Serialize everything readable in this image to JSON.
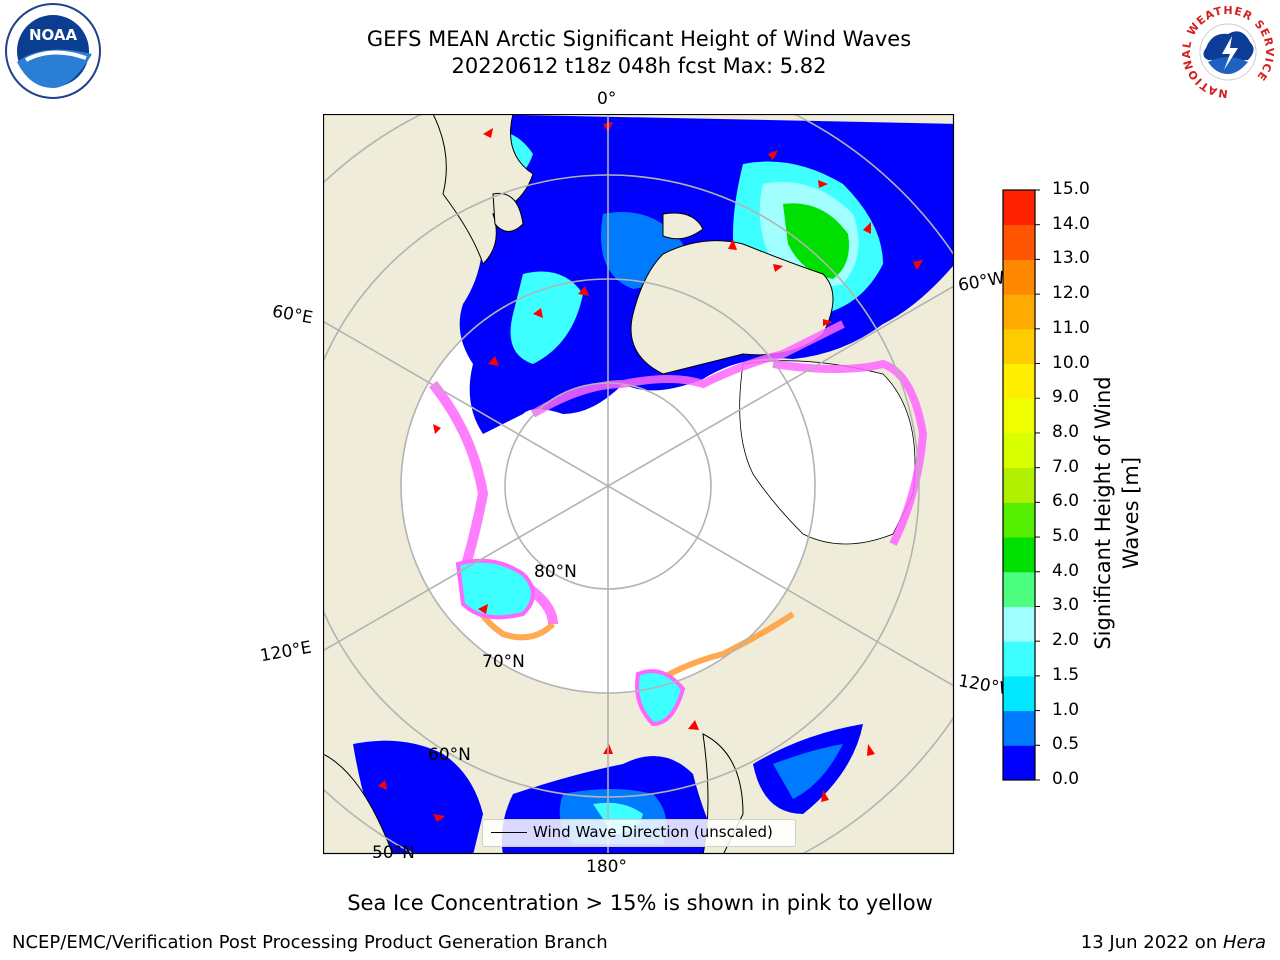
{
  "header": {
    "title_line1": "GEFS MEAN Arctic Significant Height of Wind Waves",
    "title_line2": "20220612 t18z 048h fcst   Max: 5.82"
  },
  "logos": {
    "left": "NOAA",
    "right_ring": "NATIONAL WEATHER SERVICE"
  },
  "map": {
    "lon_labels": [
      "0°",
      "60°E",
      "120°E",
      "180°",
      "120°W",
      "60°W"
    ],
    "lat_labels": [
      "80°N",
      "70°N",
      "60°N",
      "50°N"
    ],
    "legend_text": "Wind Wave Direction (unscaled)",
    "colors": {
      "land": "#efedd9",
      "ice_free_high": "#ffffff",
      "grid": "#b3b3b3",
      "arrow": "#ff0000"
    }
  },
  "colorbar": {
    "title": "Significant Height of Wind Waves [m]",
    "ticks": [
      "0.0",
      "0.5",
      "1.0",
      "1.5",
      "2.0",
      "3.0",
      "4.0",
      "5.0",
      "6.0",
      "7.0",
      "8.0",
      "9.0",
      "10.0",
      "11.0",
      "12.0",
      "13.0",
      "14.0",
      "15.0"
    ],
    "colors": [
      "#0000ff",
      "#007bff",
      "#00e8ff",
      "#3dffff",
      "#a2ffff",
      "#4dff80",
      "#00e000",
      "#55ee00",
      "#b0f000",
      "#d8ff00",
      "#f0ff00",
      "#ffee00",
      "#ffcc00",
      "#ffaa00",
      "#ff8800",
      "#ff5500",
      "#ff2200"
    ]
  },
  "caption": "Sea Ice Concentration > 15% is shown in pink to yellow",
  "footer": {
    "left": "NCEP/EMC/Verification Post Processing Product Generation Branch",
    "right_prefix": "13 Jun 2022 on ",
    "right_host": "Hera"
  }
}
